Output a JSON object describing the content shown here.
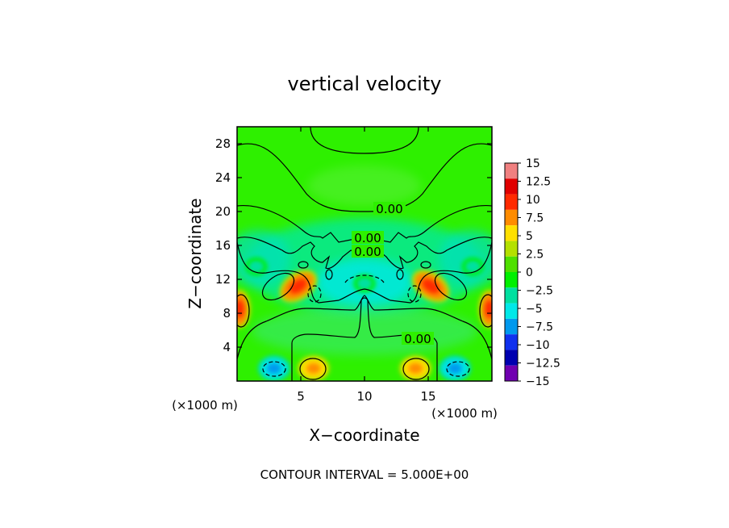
{
  "chart_data": {
    "type": "heatmap",
    "title": "vertical velocity",
    "xlabel": "X−coordinate",
    "ylabel": "Z−coordinate",
    "x_unit": "(×1000 m)",
    "z_unit": "(×1000 m)",
    "xlim": [
      0,
      20
    ],
    "ylim": [
      0,
      30
    ],
    "x_ticks": [
      5,
      10,
      15
    ],
    "y_ticks": [
      4,
      8,
      12,
      16,
      20,
      24,
      28
    ],
    "footer": "CONTOUR INTERVAL = 5.000E+00",
    "contour_labels": [
      "0.00",
      "0.00",
      "0.00",
      "0.00"
    ],
    "colorbar": {
      "ticks": [
        15,
        12.5,
        10,
        7.5,
        5,
        2.5,
        0,
        -2.5,
        -5,
        -7.5,
        -10,
        -12.5,
        -15
      ],
      "tick_labels": [
        "15",
        "12.5",
        "10",
        "7.5",
        "5",
        "2.5",
        "0",
        "−2.5",
        "−5",
        "−7.5",
        "−10",
        "−12.5",
        "−15"
      ],
      "colors": [
        "#f08080",
        "#e00000",
        "#ff2a00",
        "#ff8c00",
        "#ffe000",
        "#b4e000",
        "#4fe000",
        "#00f000",
        "#00e0a0",
        "#00e8e8",
        "#0099ee",
        "#1030ee",
        "#0000b0",
        "#7000b0"
      ]
    },
    "features": [
      {
        "kind": "updraft",
        "x": 4.8,
        "z": 11.2,
        "value": 9
      },
      {
        "kind": "updraft",
        "x": 15.2,
        "z": 11.2,
        "value": 9
      },
      {
        "kind": "updraft",
        "x": 0.2,
        "z": 8.5,
        "value": 9
      },
      {
        "kind": "updraft",
        "x": 19.8,
        "z": 8.5,
        "value": 9
      },
      {
        "kind": "updraft",
        "x": 6.0,
        "z": 1.5,
        "value": 8
      },
      {
        "kind": "updraft",
        "x": 14.0,
        "z": 1.5,
        "value": 8
      },
      {
        "kind": "downdraft",
        "x": 2.9,
        "z": 1.5,
        "value": -8
      },
      {
        "kind": "downdraft",
        "x": 17.1,
        "z": 1.5,
        "value": -8
      },
      {
        "kind": "downdraft",
        "x": 10.0,
        "z": 11.5,
        "value": -4
      },
      {
        "kind": "downdraft",
        "x": 1.5,
        "z": 13.5,
        "value": -3
      },
      {
        "kind": "downdraft",
        "x": 18.5,
        "z": 13.5,
        "value": -3
      }
    ]
  }
}
